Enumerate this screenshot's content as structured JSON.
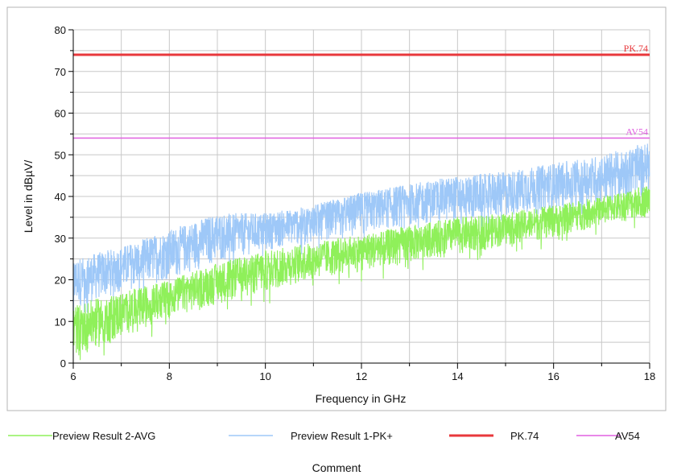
{
  "chart_data": {
    "type": "line",
    "title": "",
    "xlabel": "Frequency in GHz",
    "ylabel": "Level in dBµV/",
    "xlim": [
      6,
      18
    ],
    "ylim": [
      0,
      80
    ],
    "x_ticks": [
      "6",
      "8",
      "10",
      "12",
      "14",
      "16",
      "18"
    ],
    "y_ticks": [
      "0",
      "10",
      "20",
      "30",
      "40",
      "50",
      "60",
      "70",
      "80"
    ],
    "grid": true,
    "legend_position": "bottom",
    "series": [
      {
        "name": "Preview Result 2-AVG",
        "color": "#8ff05a",
        "style": "noise-band",
        "x": [
          6,
          7,
          8,
          9,
          10,
          11,
          12,
          13,
          14,
          15,
          16,
          17,
          18
        ],
        "y_low": [
          1,
          6,
          11,
          14,
          17,
          20,
          22,
          24,
          26,
          28,
          30,
          33,
          35
        ],
        "y_high": [
          14,
          17,
          20,
          24,
          27,
          29,
          31,
          33,
          35,
          36,
          38,
          40,
          43
        ]
      },
      {
        "name": "Preview Result 1-PK+",
        "color": "#9ec8f8",
        "style": "noise-band",
        "x": [
          6,
          7,
          8,
          9,
          10,
          11,
          12,
          13,
          14,
          15,
          16,
          17,
          18
        ],
        "y_low": [
          13,
          17,
          20,
          24,
          27,
          29,
          31,
          33,
          34,
          35,
          37,
          38,
          40
        ],
        "y_high": [
          25,
          28,
          32,
          36,
          36,
          38,
          41,
          43,
          45,
          46,
          48,
          50,
          53
        ]
      },
      {
        "name": "PK.74",
        "color": "#e8383c",
        "style": "limit",
        "x": [
          6,
          18
        ],
        "y": [
          74,
          74
        ]
      },
      {
        "name": "AV54",
        "color": "#e060e0",
        "style": "limit",
        "x": [
          6,
          18
        ],
        "y": [
          54,
          54
        ]
      }
    ],
    "annotations": [
      {
        "text": "PK.74",
        "x": 18,
        "y": 74,
        "color": "#e8383c"
      },
      {
        "text": "AV54",
        "x": 18,
        "y": 54,
        "color": "#e060e0"
      }
    ]
  },
  "footer": {
    "comment": "Comment"
  }
}
